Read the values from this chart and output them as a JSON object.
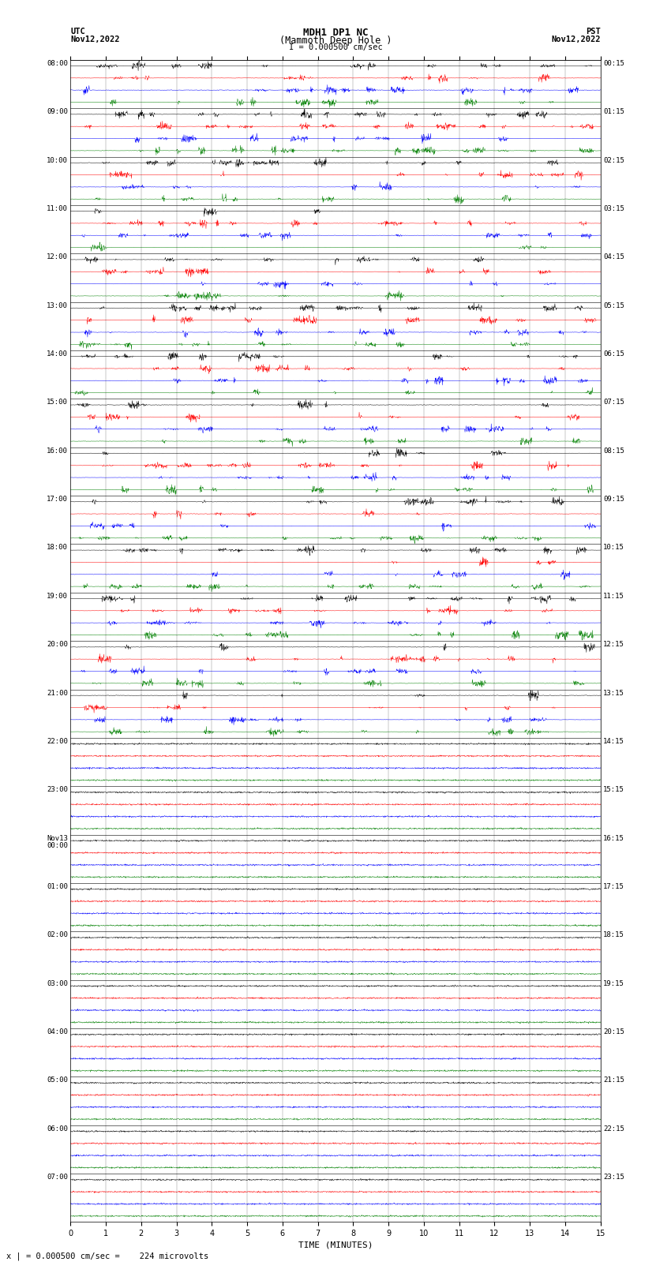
{
  "title_line1": "MDH1 DP1 NC",
  "title_line2": "(Mammoth Deep Hole )",
  "title_line3": "I = 0.000500 cm/sec",
  "label_utc": "UTC",
  "label_utc_date": "Nov12,2022",
  "label_pst": "PST",
  "label_pst_date": "Nov12,2022",
  "xlabel": "TIME (MINUTES)",
  "footer": "x | = 0.000500 cm/sec =    224 microvolts",
  "left_times": [
    "08:00",
    "09:00",
    "10:00",
    "11:00",
    "12:00",
    "13:00",
    "14:00",
    "15:00",
    "16:00",
    "17:00",
    "18:00",
    "19:00",
    "20:00",
    "21:00",
    "22:00",
    "23:00",
    "Nov13\n00:00",
    "01:00",
    "02:00",
    "03:00",
    "04:00",
    "05:00",
    "06:00",
    "07:00"
  ],
  "right_times": [
    "00:15",
    "01:15",
    "02:15",
    "03:15",
    "04:15",
    "05:15",
    "06:15",
    "07:15",
    "08:15",
    "09:15",
    "10:15",
    "11:15",
    "12:15",
    "13:15",
    "14:15",
    "15:15",
    "16:15",
    "17:15",
    "18:15",
    "19:15",
    "20:15",
    "21:15",
    "22:15",
    "23:15"
  ],
  "n_rows": 24,
  "n_active_rows": 14,
  "traces_per_row": 4,
  "trace_colors": [
    "black",
    "red",
    "blue",
    "green"
  ],
  "bg_color": "white",
  "xmin": 0,
  "xmax": 15,
  "xticks": [
    0,
    1,
    2,
    3,
    4,
    5,
    6,
    7,
    8,
    9,
    10,
    11,
    12,
    13,
    14,
    15
  ]
}
